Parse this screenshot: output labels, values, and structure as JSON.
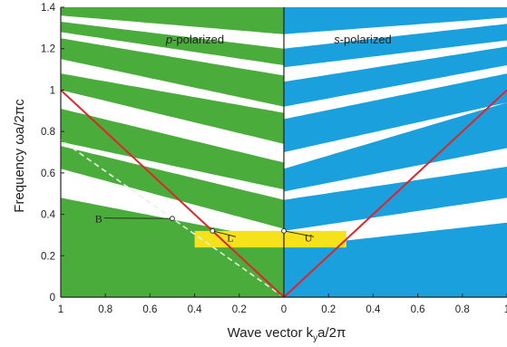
{
  "chart_data": {
    "type": "area",
    "panels": {
      "left_label_var": "p",
      "left_label_rest": "-polarized",
      "right_label_var": "s",
      "right_label_rest": "-polarized"
    },
    "xlabel": "Wave vector  k",
    "xlabel_sub": "y",
    "xlabel_tail": "a/2π",
    "ylabel": "Frequency  ωa/2πc",
    "xlim": [
      -1,
      1
    ],
    "ylim": [
      0,
      1.4
    ],
    "x_tick_labels": [
      "1",
      "0.8",
      "0.6",
      "0.4",
      "0.2",
      "0",
      "0.2",
      "0.4",
      "0.6",
      "0.8",
      "1"
    ],
    "y_tick_labels": [
      "0",
      "0.2",
      "0.4",
      "0.6",
      "0.8",
      "1",
      "1.2",
      "1.4"
    ],
    "y_ticks": [
      0,
      0.2,
      0.4,
      0.6,
      0.8,
      1.0,
      1.2,
      1.4
    ],
    "colors": {
      "p_band": "#4aac3a",
      "s_band": "#1aa0dc",
      "light_line": "#e0242c",
      "gap_highlight": "#f5e21a",
      "brewster_line": "#e6f2e0",
      "axis": "#222222"
    },
    "p_polarized_bands": [
      {
        "k": [
          0,
          1
        ],
        "lower": [
          0,
          0
        ],
        "upper": [
          0.27,
          0.48
        ]
      },
      {
        "k": [
          0,
          1
        ],
        "lower": [
          0.33,
          0.62
        ],
        "upper": [
          0.47,
          0.73
        ]
      },
      {
        "k": [
          0,
          1
        ],
        "lower": [
          0.52,
          0.75
        ],
        "upper": [
          0.65,
          0.91
        ]
      },
      {
        "k": [
          0,
          1
        ],
        "lower": [
          0.74,
          1.0
        ],
        "upper": [
          0.89,
          1.08
        ]
      },
      {
        "k": [
          0,
          1
        ],
        "lower": [
          0.92,
          1.15
        ],
        "upper": [
          1.07,
          1.25
        ]
      },
      {
        "k": [
          0,
          1
        ],
        "lower": [
          1.12,
          1.28
        ],
        "upper": [
          1.2,
          1.33
        ]
      },
      {
        "k": [
          0,
          1
        ],
        "lower": [
          1.27,
          1.36
        ],
        "upper": [
          1.4,
          1.4
        ]
      }
    ],
    "s_polarized_bands": [
      {
        "k": [
          0,
          1
        ],
        "lower": [
          0,
          0
        ],
        "upper": [
          0.24,
          0.36
        ]
      },
      {
        "k": [
          0,
          1
        ],
        "lower": [
          0.32,
          0.48
        ],
        "upper": [
          0.47,
          0.63
        ]
      },
      {
        "k": [
          0,
          1
        ],
        "lower": [
          0.51,
          0.72
        ],
        "upper": [
          0.62,
          0.94
        ]
      },
      {
        "k": [
          0,
          1
        ],
        "lower": [
          0.7,
          0.94
        ],
        "upper": [
          0.86,
          1.08
        ]
      },
      {
        "k": [
          0,
          1
        ],
        "lower": [
          0.92,
          1.12
        ],
        "upper": [
          1.04,
          1.21
        ]
      },
      {
        "k": [
          0,
          1
        ],
        "lower": [
          1.11,
          1.24
        ],
        "upper": [
          1.2,
          1.32
        ]
      },
      {
        "k": [
          0,
          1
        ],
        "lower": [
          1.27,
          1.35
        ],
        "upper": [
          1.4,
          1.4
        ]
      }
    ],
    "light_line": {
      "slope": 1
    },
    "brewster_line": {
      "k": [
        0,
        1
      ],
      "w": [
        0,
        0.76
      ]
    },
    "omnidirectional_gap": {
      "k": [
        -0.4,
        0.28
      ],
      "w": [
        0.24,
        0.32
      ]
    },
    "annotations": [
      {
        "text": "B",
        "k": -0.5,
        "w": 0.38,
        "label_k": -0.83,
        "label_w": 0.36
      },
      {
        "text": "L",
        "k": -0.32,
        "w": 0.32,
        "label_k": -0.24,
        "label_w": 0.27
      },
      {
        "text": "U",
        "k": 0,
        "w": 0.32,
        "label_k": 0.11,
        "label_w": 0.27
      }
    ]
  }
}
